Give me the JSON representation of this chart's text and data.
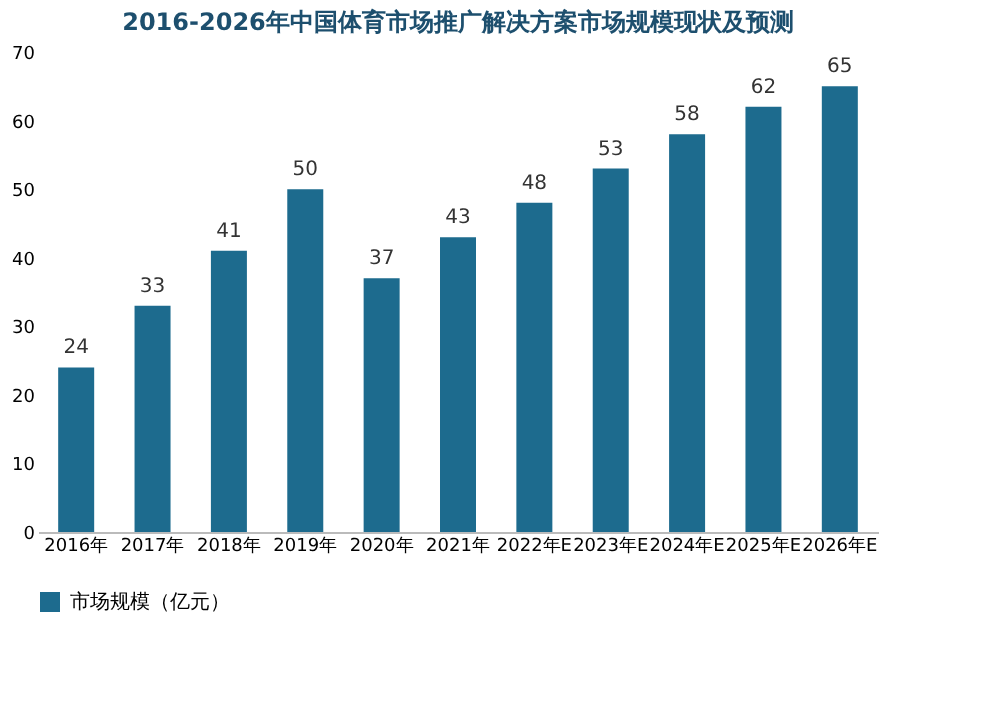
{
  "chart_data": {
    "type": "bar",
    "title": "2016-2026年中国体育市场推广解决方案市场规模现状及预测",
    "categories": [
      "2016年",
      "2017年",
      "2018年",
      "2019年",
      "2020年",
      "2021年",
      "2022年E",
      "2023年E",
      "2024年E",
      "2025年E",
      "2026年E"
    ],
    "series": [
      {
        "name": "市场规模（亿元）",
        "color": "#1d6b8e",
        "values": [
          24,
          33,
          41,
          50,
          37,
          43,
          48,
          53,
          58,
          62,
          65
        ]
      }
    ],
    "ylim": [
      0,
      70
    ],
    "yticks": [
      0,
      10,
      20,
      30,
      40,
      50,
      60,
      70
    ],
    "grid": false,
    "legend": "bottom",
    "data_labels": true
  }
}
